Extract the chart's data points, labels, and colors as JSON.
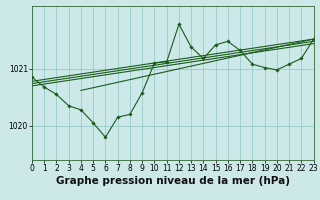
{
  "title": "Graphe pression niveau de la mer (hPa)",
  "bg_color": "#cce8e8",
  "grid_color": "#99cccc",
  "line_color": "#1a5c1a",
  "marker_color": "#1a5c1a",
  "xlim": [
    0,
    23
  ],
  "ylim": [
    1019.4,
    1022.1
  ],
  "yticks": [
    1020,
    1021
  ],
  "xticks": [
    0,
    1,
    2,
    3,
    4,
    5,
    6,
    7,
    8,
    9,
    10,
    11,
    12,
    13,
    14,
    15,
    16,
    17,
    18,
    19,
    20,
    21,
    22,
    23
  ],
  "main_line_x": [
    0,
    1,
    2,
    3,
    4,
    5,
    6,
    7,
    8,
    9,
    10,
    11,
    12,
    13,
    14,
    15,
    16,
    17,
    18,
    19,
    20,
    21,
    22,
    23
  ],
  "main_line_y": [
    1020.85,
    1020.68,
    1020.55,
    1020.35,
    1020.28,
    1020.05,
    1019.8,
    1020.15,
    1020.2,
    1020.58,
    1021.1,
    1021.12,
    1021.78,
    1021.38,
    1021.18,
    1021.42,
    1021.48,
    1021.32,
    1021.08,
    1021.02,
    1020.98,
    1021.08,
    1021.18,
    1021.52
  ],
  "trend_lines": [
    {
      "x": [
        0,
        23
      ],
      "y": [
        1020.78,
        1021.52
      ]
    },
    {
      "x": [
        0,
        23
      ],
      "y": [
        1020.74,
        1021.48
      ]
    },
    {
      "x": [
        0,
        23
      ],
      "y": [
        1020.7,
        1021.44
      ]
    },
    {
      "x": [
        4,
        23
      ],
      "y": [
        1020.62,
        1021.52
      ]
    }
  ],
  "title_fontsize": 7.5,
  "tick_fontsize": 5.5
}
